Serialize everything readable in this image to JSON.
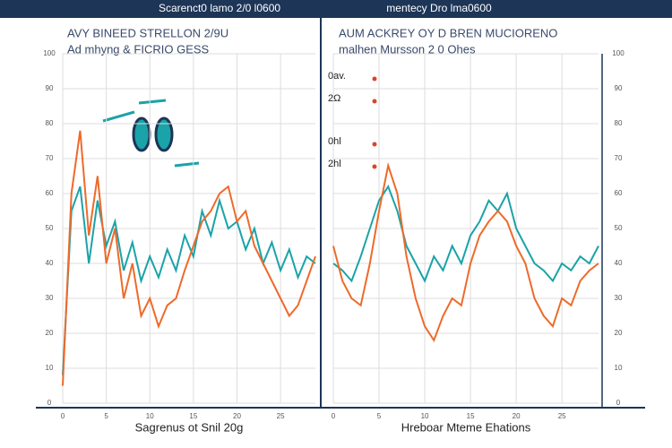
{
  "chart_data": [
    {
      "type": "line",
      "title": "Scarenct0 lamo 2/0 l0600",
      "subtitle": [
        "AVY BINEED STRELLON 2/9U",
        "Ad mhyng & FICRIO GESS"
      ],
      "xlabel": "Sagrenus ot Snil 20g",
      "xlim": [
        0,
        29
      ],
      "xticks": [
        0,
        5,
        10,
        15,
        20,
        25
      ],
      "ylim": [
        0,
        100
      ],
      "yticks": [
        0,
        10,
        20,
        30,
        40,
        50,
        60,
        70,
        80,
        90,
        100
      ],
      "grid": true,
      "series": [
        {
          "name": "teal",
          "color": "#1aa3a8",
          "values": [
            8,
            55,
            62,
            40,
            58,
            45,
            52,
            38,
            46,
            35,
            42,
            36,
            44,
            38,
            48,
            42,
            55,
            48,
            58,
            50,
            52,
            44,
            50,
            40,
            46,
            38,
            44,
            36,
            42,
            40
          ]
        },
        {
          "name": "orange",
          "color": "#ee6a2a",
          "values": [
            5,
            60,
            78,
            48,
            65,
            40,
            50,
            30,
            40,
            25,
            30,
            22,
            28,
            30,
            38,
            45,
            52,
            55,
            60,
            62,
            52,
            55,
            45,
            40,
            35,
            30,
            25,
            28,
            35,
            42
          ]
        }
      ]
    },
    {
      "type": "line",
      "title": "mentecy Dro lma0600",
      "subtitle": [
        "AUM ACKREY OY D BREN MUCIORENO",
        "malhen Mursson 2 0 Ohes"
      ],
      "xlabel": "Hreboar Mteme Ehations",
      "annotations": [
        "0av.",
        "2Ω",
        "0hl",
        "2hl"
      ],
      "xlim": [
        0,
        29
      ],
      "xticks": [
        0,
        5,
        10,
        15,
        20,
        25
      ],
      "ylim": [
        0,
        100
      ],
      "yticks": [
        0,
        10,
        20,
        30,
        40,
        50,
        60,
        70,
        80,
        90,
        100
      ],
      "grid": true,
      "series": [
        {
          "name": "teal",
          "color": "#1aa3a8",
          "values": [
            40,
            38,
            35,
            42,
            50,
            58,
            62,
            55,
            45,
            40,
            35,
            42,
            38,
            45,
            40,
            48,
            52,
            58,
            55,
            60,
            50,
            45,
            40,
            38,
            35,
            40,
            38,
            42,
            40,
            45
          ]
        },
        {
          "name": "orange",
          "color": "#ee6a2a",
          "values": [
            45,
            35,
            30,
            28,
            40,
            55,
            68,
            60,
            42,
            30,
            22,
            18,
            25,
            30,
            28,
            40,
            48,
            52,
            55,
            52,
            45,
            40,
            30,
            25,
            22,
            30,
            28,
            35,
            38,
            40
          ]
        }
      ]
    }
  ]
}
